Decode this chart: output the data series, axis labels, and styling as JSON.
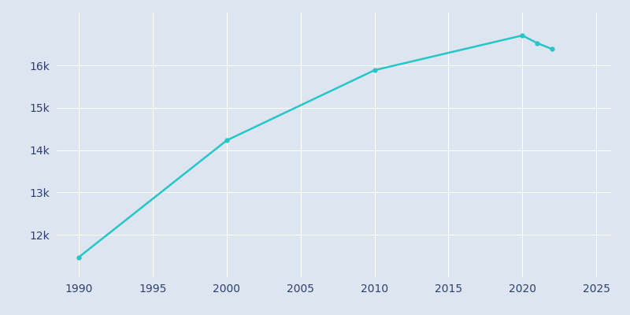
{
  "years": [
    1990,
    2000,
    2010,
    2020,
    2021,
    2022
  ],
  "population": [
    11474,
    14232,
    15890,
    16710,
    16530,
    16390
  ],
  "line_color": "#26c6c6",
  "marker": "o",
  "marker_size": 3.5,
  "line_width": 1.8,
  "bg_color": "#dde6f0",
  "plot_bg_color": "#dde6f0",
  "grid_color": "#ffffff",
  "tick_color": "#2e3f6e",
  "xlim": [
    1988.5,
    2026
  ],
  "ylim": [
    11000,
    17250
  ],
  "xticks": [
    1990,
    1995,
    2000,
    2005,
    2010,
    2015,
    2020,
    2025
  ],
  "yticks": [
    12000,
    13000,
    14000,
    15000,
    16000
  ],
  "ytick_labels": [
    "12k",
    "13k",
    "14k",
    "15k",
    "16k"
  ]
}
